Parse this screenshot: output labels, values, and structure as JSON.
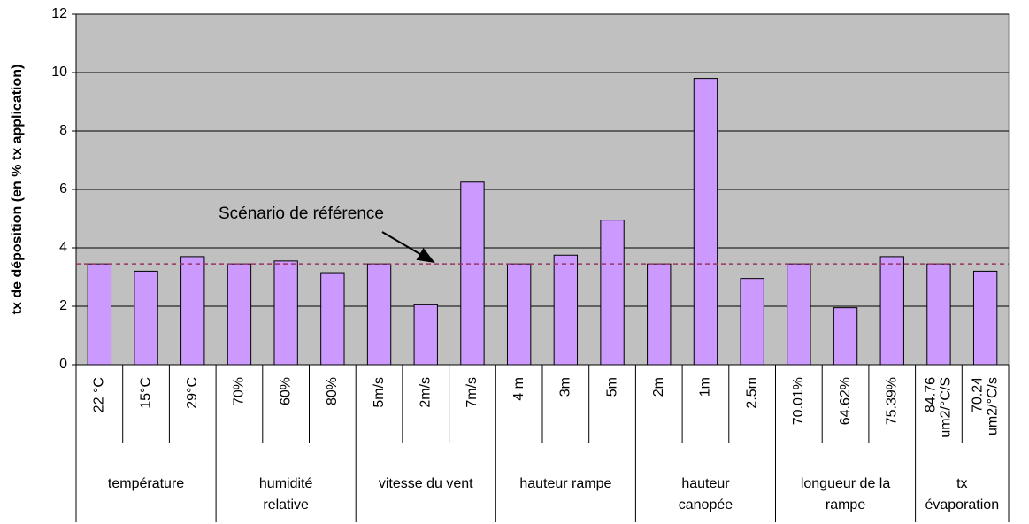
{
  "chart_data": {
    "type": "bar",
    "y_label": "tx de déposition (en % tx application)",
    "groups": [
      {
        "name": [
          "température"
        ],
        "categories": [
          [
            "22 °C"
          ],
          [
            "15°C"
          ],
          [
            "29°C"
          ]
        ]
      },
      {
        "name": [
          "humidité",
          "relative"
        ],
        "categories": [
          [
            "70%"
          ],
          [
            "60%"
          ],
          [
            "80%"
          ]
        ]
      },
      {
        "name": [
          "vitesse du vent"
        ],
        "categories": [
          [
            "5m/s"
          ],
          [
            "2m/s"
          ],
          [
            "7m/s"
          ]
        ]
      },
      {
        "name": [
          "hauteur rampe"
        ],
        "categories": [
          [
            "4 m"
          ],
          [
            "3m"
          ],
          [
            "5m"
          ]
        ]
      },
      {
        "name": [
          "hauteur",
          "canopée"
        ],
        "categories": [
          [
            "2m"
          ],
          [
            "1m"
          ],
          [
            "2.5m"
          ]
        ]
      },
      {
        "name": [
          "longueur de la",
          "rampe"
        ],
        "categories": [
          [
            "70.01%"
          ],
          [
            "64.62%"
          ],
          [
            "75.39%"
          ]
        ]
      },
      {
        "name": [
          "tx",
          "évaporation"
        ],
        "categories": [
          [
            "84.76",
            "um2/°C/S"
          ],
          [
            "70.24",
            "um2/°C/s"
          ]
        ]
      }
    ],
    "values": [
      3.45,
      3.2,
      3.7,
      3.45,
      3.55,
      3.15,
      3.45,
      2.05,
      6.25,
      3.45,
      3.75,
      4.95,
      3.45,
      9.8,
      2.95,
      3.45,
      1.95,
      3.7,
      3.45,
      3.2
    ],
    "color": "#cc99ff",
    "reference": {
      "value": 3.45,
      "label": "Scénario de référence",
      "color": "#993366"
    },
    "ylim": [
      0,
      12
    ],
    "yticks": [
      0,
      2,
      4,
      6,
      8,
      10,
      12
    ],
    "grid": true,
    "plot_background": "#c0c0c0"
  }
}
